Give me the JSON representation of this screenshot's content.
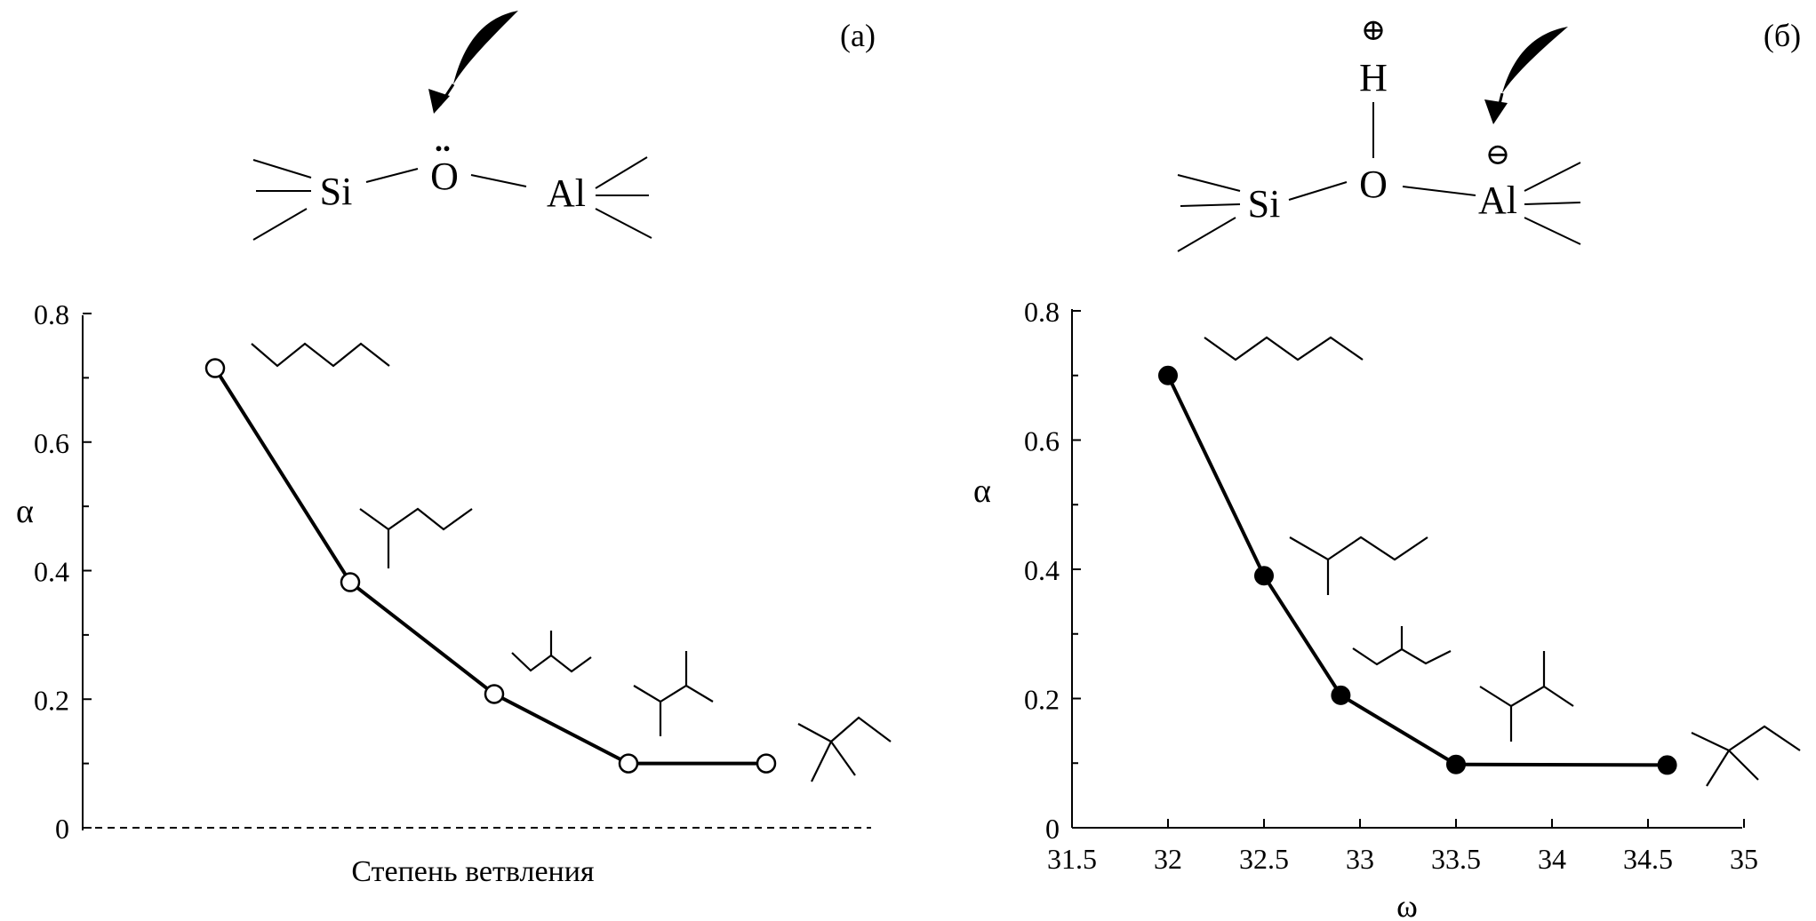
{
  "panel_a": {
    "tag": "(а)",
    "structure": {
      "si": "Si",
      "o": "O",
      "o_lone_pair": "..",
      "al": "Al"
    }
  },
  "panel_b": {
    "tag": "(б)",
    "structure": {
      "h": "H",
      "plus": "⊕",
      "si": "Si",
      "o": "O",
      "al": "Al",
      "minus": "⊖"
    }
  },
  "icons": {
    "attack_arrow": "curved-arrow-icon",
    "molecules": [
      "n-pentane-icon",
      "2-methylbutane-icon",
      "2-methylpentane-icon",
      "2,3-dimethylbutane-icon",
      "2,2-dimethylbutane-icon"
    ]
  },
  "chart_data": [
    {
      "type": "line",
      "xlabel": "Степень ветвления",
      "ylabel": "α",
      "x_ticks_labeled": false,
      "x": [
        1,
        2,
        3,
        4,
        5
      ],
      "ylim": [
        0,
        0.8
      ],
      "yticks": [
        "0",
        "0.2",
        "0.4",
        "0.6",
        "0.8"
      ],
      "zero_line": "dashed",
      "marker": "open-circle",
      "series": [
        {
          "values": [
            0.715,
            0.382,
            0.208,
            0.1,
            0.1
          ]
        }
      ]
    },
    {
      "type": "line",
      "xlabel": "ω",
      "ylabel": "α",
      "xlim": [
        31.5,
        35
      ],
      "xticks": [
        "31.5",
        "32",
        "32.5",
        "33",
        "33.5",
        "34",
        "34.5",
        "35"
      ],
      "ylim": [
        0,
        0.8
      ],
      "yticks": [
        "0",
        "0.2",
        "0.4",
        "0.6",
        "0.8"
      ],
      "marker": "filled-circle",
      "series": [
        {
          "x": [
            32.0,
            32.5,
            32.9,
            33.5,
            34.6
          ],
          "values": [
            0.7,
            0.39,
            0.205,
            0.098,
            0.097
          ]
        }
      ]
    }
  ]
}
